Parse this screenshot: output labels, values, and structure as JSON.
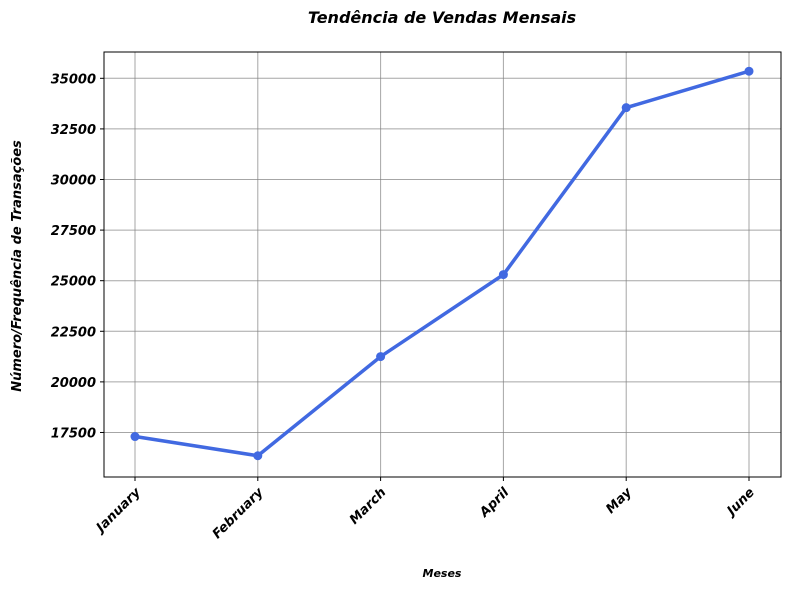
{
  "chart_data": {
    "type": "line",
    "title": "Tendência de Vendas Mensais",
    "xlabel": "Meses",
    "ylabel": "Número/Frequência de Transações",
    "categories": [
      "January",
      "February",
      "March",
      "April",
      "May",
      "June"
    ],
    "series": [
      {
        "values": [
          17300,
          16350,
          21250,
          25300,
          33550,
          35350
        ]
      }
    ],
    "ylim": [
      15300,
      36300
    ],
    "yticks": [
      17500,
      20000,
      22500,
      25000,
      27500,
      30000,
      32500,
      35000
    ],
    "ytick_labels": [
      "17500",
      "20000",
      "22500",
      "25000",
      "27500",
      "30000",
      "32500",
      "35000"
    ],
    "grid": true,
    "line_color": "#4169e1",
    "grid_color": "#808080"
  }
}
